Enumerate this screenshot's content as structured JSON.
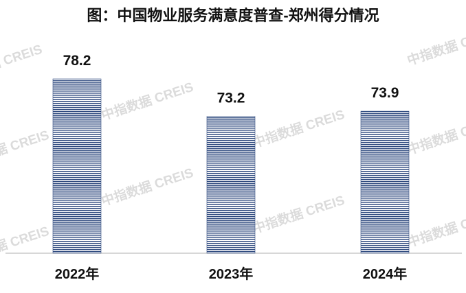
{
  "watermark_text": "中指数据 CREIS",
  "chart_data": {
    "type": "bar",
    "title": "图：中国物业服务满意度普查-郑州得分情况",
    "categories": [
      "2022年",
      "2023年",
      "2024年"
    ],
    "values": [
      78.2,
      73.2,
      73.9
    ],
    "value_labels": [
      "78.2",
      "73.2",
      "73.9"
    ],
    "ylim": [
      55,
      80
    ],
    "grid": false,
    "legend": "none",
    "bar_color": "#2f4a7f"
  }
}
